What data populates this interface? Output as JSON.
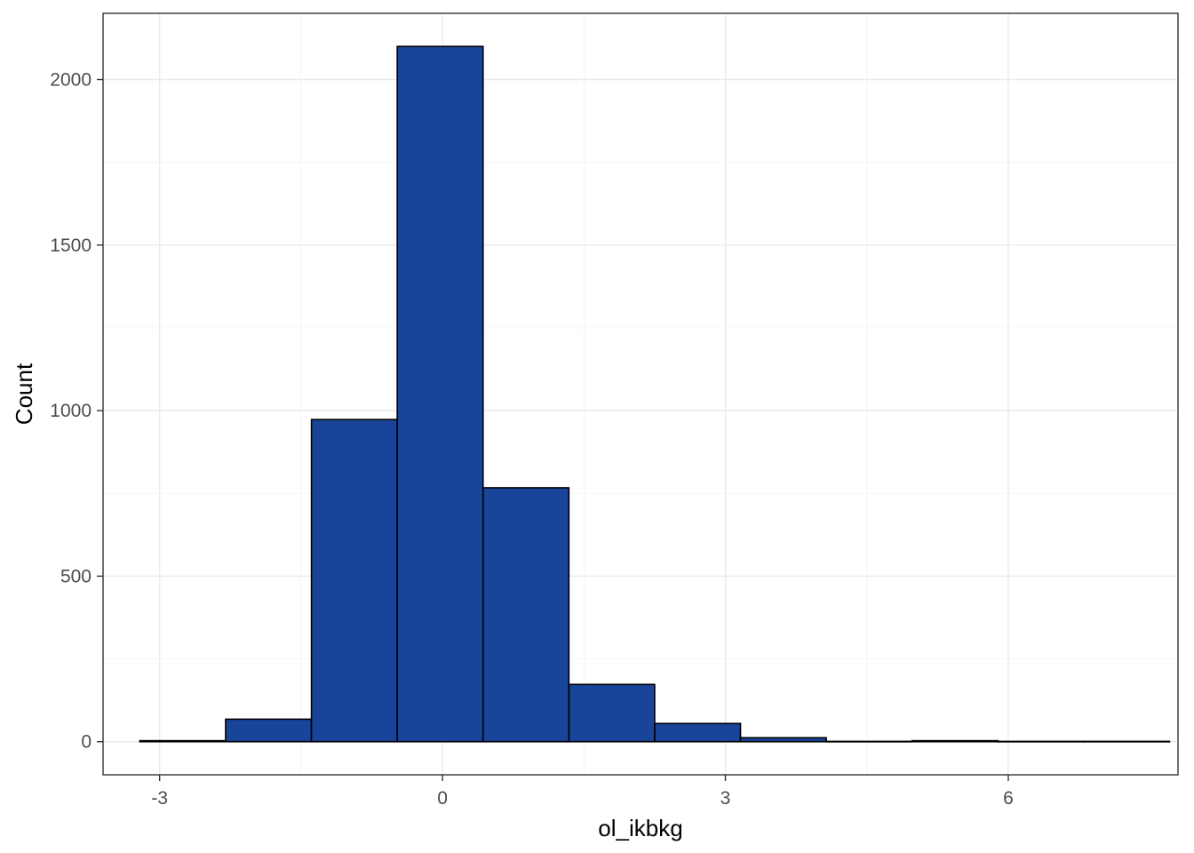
{
  "chart_data": {
    "type": "bar",
    "subtype": "histogram",
    "xlabel": "ol_ikbkg",
    "ylabel": "Count",
    "xlim": [
      -3.6,
      7.8
    ],
    "ylim": [
      -100,
      2200
    ],
    "x_ticks": [
      -3,
      0,
      3,
      6
    ],
    "x_minor_ticks": [
      -1.5,
      1.5,
      4.5
    ],
    "y_ticks": [
      0,
      500,
      1000,
      1500,
      2000
    ],
    "y_minor_ticks": [
      250,
      750,
      1250,
      1750
    ],
    "x_tick_labels": [
      "-3",
      "0",
      "3",
      "6"
    ],
    "y_tick_labels": [
      "0",
      "500",
      "1000",
      "1500",
      "2000"
    ],
    "bins": [
      {
        "x0": -3.21,
        "x1": -2.3,
        "count": 3
      },
      {
        "x0": -2.3,
        "x1": -1.39,
        "count": 68
      },
      {
        "x0": -1.39,
        "x1": -0.48,
        "count": 973
      },
      {
        "x0": -0.48,
        "x1": 0.43,
        "count": 2100
      },
      {
        "x0": 0.43,
        "x1": 1.34,
        "count": 767
      },
      {
        "x0": 1.34,
        "x1": 2.25,
        "count": 173
      },
      {
        "x0": 2.25,
        "x1": 3.16,
        "count": 55
      },
      {
        "x0": 3.16,
        "x1": 4.07,
        "count": 12
      },
      {
        "x0": 4.07,
        "x1": 4.98,
        "count": 1
      },
      {
        "x0": 4.98,
        "x1": 5.89,
        "count": 3
      },
      {
        "x0": 5.89,
        "x1": 6.8,
        "count": 1
      },
      {
        "x0": 6.8,
        "x1": 7.71,
        "count": 1
      }
    ],
    "grid": true,
    "legend": "none",
    "colors": {
      "bar_fill": "#18449A",
      "bar_stroke": "#000000",
      "grid_major": "#EBEBEB",
      "grid_minor": "#F5F5F5",
      "panel_border": "#333333",
      "tick_text": "#4D4D4D",
      "title_text": "#000000"
    }
  }
}
